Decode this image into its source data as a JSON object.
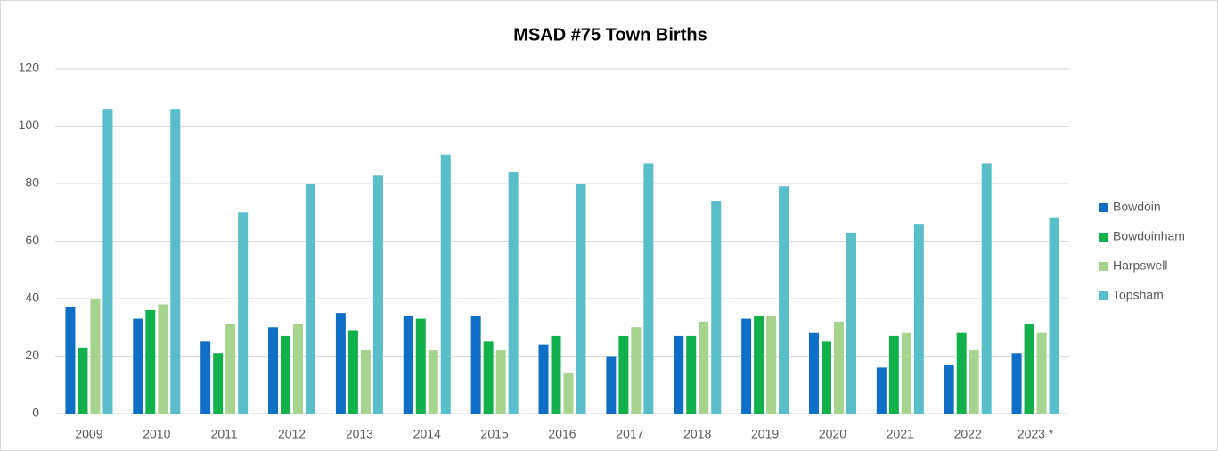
{
  "chart_data": {
    "type": "bar",
    "title": "MSAD #75 Town Births",
    "categories": [
      "2009",
      "2010",
      "2011",
      "2012",
      "2013",
      "2014",
      "2015",
      "2016",
      "2017",
      "2018",
      "2019",
      "2020",
      "2021",
      "2022",
      "2023 *"
    ],
    "series": [
      {
        "name": "Bowdoin",
        "color": "#0f6fc6",
        "values": [
          37,
          33,
          25,
          30,
          35,
          34,
          34,
          24,
          20,
          27,
          33,
          28,
          16,
          17,
          21
        ]
      },
      {
        "name": "Bowdoinham",
        "color": "#10b04a",
        "values": [
          23,
          36,
          21,
          27,
          29,
          33,
          25,
          27,
          27,
          27,
          34,
          25,
          27,
          28,
          31
        ]
      },
      {
        "name": "Harpswell",
        "color": "#a6d48f",
        "values": [
          40,
          38,
          31,
          31,
          22,
          22,
          22,
          14,
          30,
          32,
          34,
          32,
          28,
          22,
          28
        ]
      },
      {
        "name": "Topsham",
        "color": "#58bfca",
        "values": [
          106,
          106,
          70,
          80,
          83,
          90,
          84,
          80,
          87,
          74,
          79,
          63,
          66,
          87,
          68
        ]
      }
    ],
    "ylim": [
      0,
      120
    ],
    "yticks": [
      0,
      20,
      40,
      60,
      80,
      100,
      120
    ],
    "grid": true,
    "legend": "right"
  }
}
